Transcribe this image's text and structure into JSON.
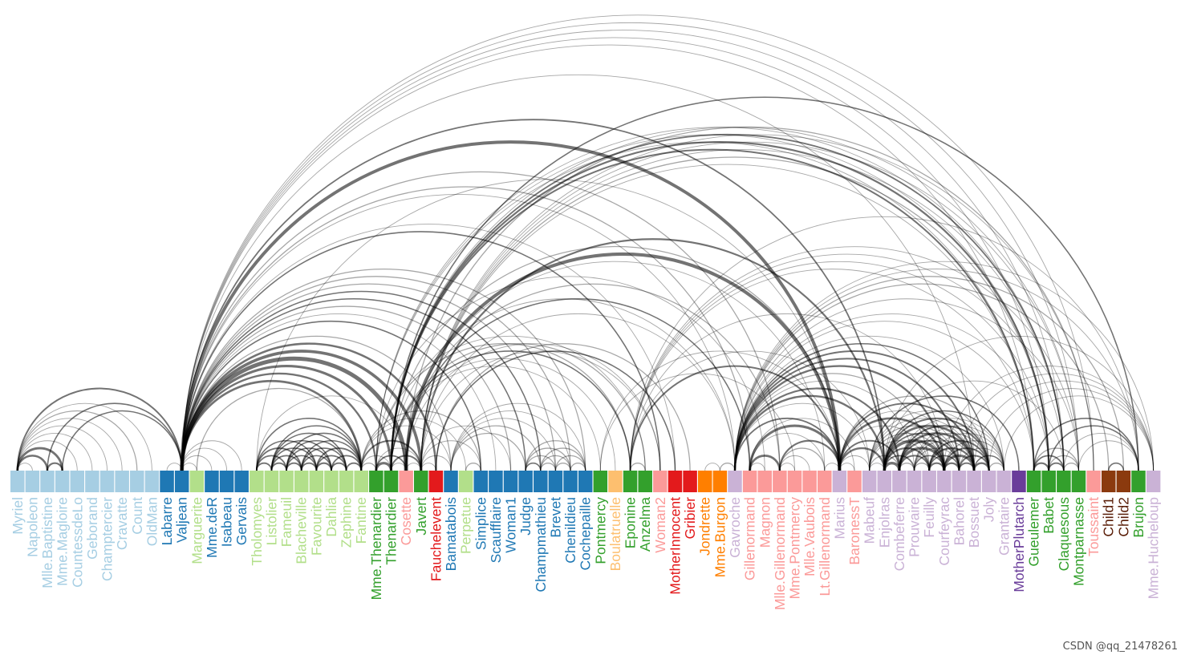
{
  "nodes": [
    {
      "name": "Myriel",
      "group": 1
    },
    {
      "name": "Napoleon",
      "group": 1
    },
    {
      "name": "Mlle.Baptistine",
      "group": 1
    },
    {
      "name": "Mme.Magloire",
      "group": 1
    },
    {
      "name": "CountessdeLo",
      "group": 1
    },
    {
      "name": "Geborand",
      "group": 1
    },
    {
      "name": "Champtercier",
      "group": 1
    },
    {
      "name": "Cravatte",
      "group": 1
    },
    {
      "name": "Count",
      "group": 1
    },
    {
      "name": "OldMan",
      "group": 1
    },
    {
      "name": "Labarre",
      "group": 2
    },
    {
      "name": "Valjean",
      "group": 2
    },
    {
      "name": "Marguerite",
      "group": 3
    },
    {
      "name": "Mme.deR",
      "group": 2
    },
    {
      "name": "Isabeau",
      "group": 2
    },
    {
      "name": "Gervais",
      "group": 2
    },
    {
      "name": "Tholomyes",
      "group": 3
    },
    {
      "name": "Listolier",
      "group": 3
    },
    {
      "name": "Fameuil",
      "group": 3
    },
    {
      "name": "Blacheville",
      "group": 3
    },
    {
      "name": "Favourite",
      "group": 3
    },
    {
      "name": "Dahlia",
      "group": 3
    },
    {
      "name": "Zephine",
      "group": 3
    },
    {
      "name": "Fantine",
      "group": 3
    },
    {
      "name": "Mme.Thenardier",
      "group": 4
    },
    {
      "name": "Thenardier",
      "group": 4
    },
    {
      "name": "Cosette",
      "group": 5
    },
    {
      "name": "Javert",
      "group": 4
    },
    {
      "name": "Fauchelevent",
      "group": 0
    },
    {
      "name": "Bamatabois",
      "group": 2
    },
    {
      "name": "Perpetue",
      "group": 3
    },
    {
      "name": "Simplice",
      "group": 2
    },
    {
      "name": "Scaufflaire",
      "group": 2
    },
    {
      "name": "Woman1",
      "group": 2
    },
    {
      "name": "Judge",
      "group": 2
    },
    {
      "name": "Champmathieu",
      "group": 2
    },
    {
      "name": "Brevet",
      "group": 2
    },
    {
      "name": "Chenildieu",
      "group": 2
    },
    {
      "name": "Cochepaille",
      "group": 2
    },
    {
      "name": "Pontmercy",
      "group": 4
    },
    {
      "name": "Boulatruelle",
      "group": 6
    },
    {
      "name": "Eponine",
      "group": 4
    },
    {
      "name": "Anzelma",
      "group": 4
    },
    {
      "name": "Woman2",
      "group": 5
    },
    {
      "name": "MotherInnocent",
      "group": 0
    },
    {
      "name": "Gribier",
      "group": 0
    },
    {
      "name": "Jondrette",
      "group": 7
    },
    {
      "name": "Mme.Burgon",
      "group": 7
    },
    {
      "name": "Gavroche",
      "group": 8
    },
    {
      "name": "Gillenormand",
      "group": 5
    },
    {
      "name": "Magnon",
      "group": 5
    },
    {
      "name": "Mlle.Gillenormand",
      "group": 5
    },
    {
      "name": "Mme.Pontmercy",
      "group": 5
    },
    {
      "name": "Mlle.Vaubois",
      "group": 5
    },
    {
      "name": "Lt.Gillenormand",
      "group": 5
    },
    {
      "name": "Marius",
      "group": 8
    },
    {
      "name": "BaronessT",
      "group": 5
    },
    {
      "name": "Mabeuf",
      "group": 8
    },
    {
      "name": "Enjolras",
      "group": 8
    },
    {
      "name": "Combeferre",
      "group": 8
    },
    {
      "name": "Prouvaire",
      "group": 8
    },
    {
      "name": "Feuilly",
      "group": 8
    },
    {
      "name": "Courfeyrac",
      "group": 8
    },
    {
      "name": "Bahorel",
      "group": 8
    },
    {
      "name": "Bossuet",
      "group": 8
    },
    {
      "name": "Joly",
      "group": 8
    },
    {
      "name": "Grantaire",
      "group": 8
    },
    {
      "name": "MotherPlutarch",
      "group": 9
    },
    {
      "name": "Gueulemer",
      "group": 4
    },
    {
      "name": "Babet",
      "group": 4
    },
    {
      "name": "Claquesous",
      "group": 4
    },
    {
      "name": "Montparnasse",
      "group": 4
    },
    {
      "name": "Toussaint",
      "group": 5
    },
    {
      "name": "Child1",
      "group": 10
    },
    {
      "name": "Child2",
      "group": 10
    },
    {
      "name": "Brujon",
      "group": 4
    },
    {
      "name": "Mme.Hucheloup",
      "group": 8
    }
  ],
  "group_colors": {
    "fill": [
      "#e31a1c",
      "#a6cee3",
      "#1f78b4",
      "#b2df8a",
      "#33a02c",
      "#fb9a99",
      "#fdbf6f",
      "#ff7f00",
      "#cab2d6",
      "#6a3d9a",
      "#8b3a0e"
    ],
    "label": [
      "#e31a1c",
      "#a6cee3",
      "#1f78b4",
      "#b2df8a",
      "#33a02c",
      "#fb9a99",
      "#fdbf6f",
      "#ff7f00",
      "#cab2d6",
      "#6a3d9a",
      "#5a1e08"
    ]
  },
  "links": [
    [
      "Napoleon",
      "Myriel",
      1
    ],
    [
      "Mlle.Baptistine",
      "Myriel",
      8
    ],
    [
      "Mme.Magloire",
      "Myriel",
      10
    ],
    [
      "Mme.Magloire",
      "Mlle.Baptistine",
      6
    ],
    [
      "CountessdeLo",
      "Myriel",
      1
    ],
    [
      "Geborand",
      "Myriel",
      1
    ],
    [
      "Champtercier",
      "Myriel",
      1
    ],
    [
      "Cravatte",
      "Myriel",
      1
    ],
    [
      "Count",
      "Myriel",
      2
    ],
    [
      "OldMan",
      "Myriel",
      1
    ],
    [
      "Valjean",
      "Labarre",
      1
    ],
    [
      "Valjean",
      "Mme.Magloire",
      3
    ],
    [
      "Valjean",
      "Mlle.Baptistine",
      3
    ],
    [
      "Valjean",
      "Myriel",
      5
    ],
    [
      "Marguerite",
      "Valjean",
      1
    ],
    [
      "Mme.deR",
      "Valjean",
      1
    ],
    [
      "Isabeau",
      "Valjean",
      1
    ],
    [
      "Gervais",
      "Valjean",
      1
    ],
    [
      "Listolier",
      "Tholomyes",
      4
    ],
    [
      "Fameuil",
      "Tholomyes",
      4
    ],
    [
      "Fameuil",
      "Listolier",
      4
    ],
    [
      "Blacheville",
      "Tholomyes",
      4
    ],
    [
      "Blacheville",
      "Listolier",
      4
    ],
    [
      "Blacheville",
      "Fameuil",
      4
    ],
    [
      "Favourite",
      "Tholomyes",
      3
    ],
    [
      "Favourite",
      "Listolier",
      3
    ],
    [
      "Favourite",
      "Fameuil",
      3
    ],
    [
      "Favourite",
      "Blacheville",
      4
    ],
    [
      "Dahlia",
      "Listolier",
      3
    ],
    [
      "Dahlia",
      "Fameuil",
      3
    ],
    [
      "Dahlia",
      "Blacheville",
      3
    ],
    [
      "Dahlia",
      "Favourite",
      5
    ],
    [
      "Zephine",
      "Listolier",
      3
    ],
    [
      "Zephine",
      "Fameuil",
      3
    ],
    [
      "Zephine",
      "Blacheville",
      3
    ],
    [
      "Zephine",
      "Favourite",
      4
    ],
    [
      "Zephine",
      "Dahlia",
      4
    ],
    [
      "Fantine",
      "Listolier",
      3
    ],
    [
      "Fantine",
      "Fameuil",
      3
    ],
    [
      "Fantine",
      "Blacheville",
      3
    ],
    [
      "Fantine",
      "Favourite",
      4
    ],
    [
      "Fantine",
      "Dahlia",
      4
    ],
    [
      "Fantine",
      "Tholomyes",
      3
    ],
    [
      "Fantine",
      "Zephine",
      4
    ],
    [
      "Fantine",
      "Marguerite",
      2
    ],
    [
      "Fantine",
      "Valjean",
      9
    ],
    [
      "Mme.Thenardier",
      "Fantine",
      2
    ],
    [
      "Mme.Thenardier",
      "Valjean",
      7
    ],
    [
      "Thenardier",
      "Mme.Thenardier",
      13
    ],
    [
      "Thenardier",
      "Fantine",
      1
    ],
    [
      "Thenardier",
      "Valjean",
      12
    ],
    [
      "Cosette",
      "Mme.Thenardier",
      4
    ],
    [
      "Cosette",
      "Valjean",
      31
    ],
    [
      "Cosette",
      "Tholomyes",
      1
    ],
    [
      "Cosette",
      "Thenardier",
      1
    ],
    [
      "Javert",
      "Valjean",
      17
    ],
    [
      "Javert",
      "Fantine",
      5
    ],
    [
      "Javert",
      "Thenardier",
      5
    ],
    [
      "Javert",
      "Mme.Thenardier",
      1
    ],
    [
      "Javert",
      "Cosette",
      1
    ],
    [
      "Fauchelevent",
      "Valjean",
      8
    ],
    [
      "Fauchelevent",
      "Javert",
      1
    ],
    [
      "Bamatabois",
      "Fantine",
      1
    ],
    [
      "Bamatabois",
      "Javert",
      1
    ],
    [
      "Bamatabois",
      "Valjean",
      2
    ],
    [
      "Perpetue",
      "Fantine",
      1
    ],
    [
      "Simplice",
      "Perpetue",
      2
    ],
    [
      "Simplice",
      "Valjean",
      3
    ],
    [
      "Simplice",
      "Fantine",
      2
    ],
    [
      "Simplice",
      "Javert",
      1
    ],
    [
      "Scaufflaire",
      "Valjean",
      1
    ],
    [
      "Woman1",
      "Valjean",
      2
    ],
    [
      "Woman1",
      "Javert",
      1
    ],
    [
      "Judge",
      "Valjean",
      3
    ],
    [
      "Judge",
      "Bamatabois",
      2
    ],
    [
      "Champmathieu",
      "Valjean",
      3
    ],
    [
      "Champmathieu",
      "Judge",
      3
    ],
    [
      "Champmathieu",
      "Bamatabois",
      2
    ],
    [
      "Brevet",
      "Judge",
      2
    ],
    [
      "Brevet",
      "Champmathieu",
      2
    ],
    [
      "Brevet",
      "Valjean",
      2
    ],
    [
      "Brevet",
      "Bamatabois",
      1
    ],
    [
      "Chenildieu",
      "Judge",
      2
    ],
    [
      "Chenildieu",
      "Champmathieu",
      2
    ],
    [
      "Chenildieu",
      "Brevet",
      2
    ],
    [
      "Chenildieu",
      "Valjean",
      2
    ],
    [
      "Chenildieu",
      "Bamatabois",
      1
    ],
    [
      "Cochepaille",
      "Judge",
      2
    ],
    [
      "Cochepaille",
      "Champmathieu",
      2
    ],
    [
      "Cochepaille",
      "Brevet",
      2
    ],
    [
      "Cochepaille",
      "Chenildieu",
      2
    ],
    [
      "Cochepaille",
      "Valjean",
      2
    ],
    [
      "Cochepaille",
      "Bamatabois",
      1
    ],
    [
      "Pontmercy",
      "Thenardier",
      1
    ],
    [
      "Boulatruelle",
      "Thenardier",
      1
    ],
    [
      "Eponine",
      "Mme.Thenardier",
      2
    ],
    [
      "Eponine",
      "Thenardier",
      3
    ],
    [
      "Anzelma",
      "Eponine",
      2
    ],
    [
      "Anzelma",
      "Thenardier",
      2
    ],
    [
      "Anzelma",
      "Mme.Thenardier",
      1
    ],
    [
      "Woman2",
      "Valjean",
      3
    ],
    [
      "Woman2",
      "Cosette",
      1
    ],
    [
      "Woman2",
      "Javert",
      1
    ],
    [
      "MotherInnocent",
      "Fauchelevent",
      3
    ],
    [
      "MotherInnocent",
      "Valjean",
      1
    ],
    [
      "Gribier",
      "Fauchelevent",
      2
    ],
    [
      "Mme.Burgon",
      "Jondrette",
      1
    ],
    [
      "Gavroche",
      "Mme.Burgon",
      2
    ],
    [
      "Gavroche",
      "Thenardier",
      1
    ],
    [
      "Gavroche",
      "Javert",
      1
    ],
    [
      "Gavroche",
      "Valjean",
      1
    ],
    [
      "Gillenormand",
      "Cosette",
      3
    ],
    [
      "Gillenormand",
      "Valjean",
      2
    ],
    [
      "Magnon",
      "Gillenormand",
      1
    ],
    [
      "Magnon",
      "Mme.Thenardier",
      1
    ],
    [
      "Mlle.Gillenormand",
      "Gillenormand",
      9
    ],
    [
      "Mlle.Gillenormand",
      "Cosette",
      2
    ],
    [
      "Mlle.Gillenormand",
      "Valjean",
      2
    ],
    [
      "Mme.Pontmercy",
      "Mlle.Gillenormand",
      1
    ],
    [
      "Mme.Pontmercy",
      "Pontmercy",
      1
    ],
    [
      "Mlle.Vaubois",
      "Mlle.Gillenormand",
      1
    ],
    [
      "Lt.Gillenormand",
      "Mlle.Gillenormand",
      2
    ],
    [
      "Lt.Gillenormand",
      "Gillenormand",
      1
    ],
    [
      "Lt.Gillenormand",
      "Cosette",
      1
    ],
    [
      "Marius",
      "Mlle.Gillenormand",
      6
    ],
    [
      "Marius",
      "Gillenormand",
      12
    ],
    [
      "Marius",
      "Pontmercy",
      1
    ],
    [
      "Marius",
      "Lt.Gillenormand",
      1
    ],
    [
      "Marius",
      "Cosette",
      21
    ],
    [
      "Marius",
      "Valjean",
      19
    ],
    [
      "Marius",
      "Tholomyes",
      1
    ],
    [
      "Marius",
      "Thenardier",
      2
    ],
    [
      "Marius",
      "Eponine",
      5
    ],
    [
      "Marius",
      "Gavroche",
      4
    ],
    [
      "BaronessT",
      "Gillenormand",
      1
    ],
    [
      "BaronessT",
      "Marius",
      1
    ],
    [
      "Mabeuf",
      "Marius",
      1
    ],
    [
      "Mabeuf",
      "Eponine",
      1
    ],
    [
      "Mabeuf",
      "Gavroche",
      1
    ],
    [
      "Enjolras",
      "Marius",
      7
    ],
    [
      "Enjolras",
      "Gavroche",
      7
    ],
    [
      "Enjolras",
      "Javert",
      6
    ],
    [
      "Enjolras",
      "Mabeuf",
      1
    ],
    [
      "Enjolras",
      "Valjean",
      4
    ],
    [
      "Combeferre",
      "Enjolras",
      15
    ],
    [
      "Combeferre",
      "Marius",
      5
    ],
    [
      "Combeferre",
      "Gavroche",
      6
    ],
    [
      "Combeferre",
      "Mabeuf",
      2
    ],
    [
      "Prouvaire",
      "Gavroche",
      1
    ],
    [
      "Prouvaire",
      "Enjolras",
      4
    ],
    [
      "Prouvaire",
      "Combeferre",
      2
    ],
    [
      "Feuilly",
      "Gavroche",
      2
    ],
    [
      "Feuilly",
      "Enjolras",
      6
    ],
    [
      "Feuilly",
      "Prouvaire",
      2
    ],
    [
      "Feuilly",
      "Combeferre",
      5
    ],
    [
      "Feuilly",
      "Mabeuf",
      1
    ],
    [
      "Feuilly",
      "Marius",
      1
    ],
    [
      "Courfeyrac",
      "Marius",
      9
    ],
    [
      "Courfeyrac",
      "Enjolras",
      17
    ],
    [
      "Courfeyrac",
      "Combeferre",
      13
    ],
    [
      "Courfeyrac",
      "Gavroche",
      7
    ],
    [
      "Courfeyrac",
      "Mabeuf",
      2
    ],
    [
      "Courfeyrac",
      "Eponine",
      1
    ],
    [
      "Courfeyrac",
      "Feuilly",
      6
    ],
    [
      "Courfeyrac",
      "Prouvaire",
      3
    ],
    [
      "Bahorel",
      "Combeferre",
      5
    ],
    [
      "Bahorel",
      "Gavroche",
      5
    ],
    [
      "Bahorel",
      "Courfeyrac",
      6
    ],
    [
      "Bahorel",
      "Mabeuf",
      2
    ],
    [
      "Bahorel",
      "Enjolras",
      4
    ],
    [
      "Bahorel",
      "Feuilly",
      3
    ],
    [
      "Bahorel",
      "Prouvaire",
      2
    ],
    [
      "Bahorel",
      "Marius",
      1
    ],
    [
      "Bossuet",
      "Marius",
      5
    ],
    [
      "Bossuet",
      "Courfeyrac",
      12
    ],
    [
      "Bossuet",
      "Gavroche",
      5
    ],
    [
      "Bossuet",
      "Bahorel",
      4
    ],
    [
      "Bossuet",
      "Enjolras",
      10
    ],
    [
      "Bossuet",
      "Feuilly",
      6
    ],
    [
      "Bossuet",
      "Prouvaire",
      2
    ],
    [
      "Bossuet",
      "Combeferre",
      9
    ],
    [
      "Bossuet",
      "Mabeuf",
      1
    ],
    [
      "Bossuet",
      "Valjean",
      1
    ],
    [
      "Joly",
      "Bahorel",
      5
    ],
    [
      "Joly",
      "Bossuet",
      7
    ],
    [
      "Joly",
      "Gavroche",
      3
    ],
    [
      "Joly",
      "Courfeyrac",
      5
    ],
    [
      "Joly",
      "Enjolras",
      5
    ],
    [
      "Joly",
      "Feuilly",
      5
    ],
    [
      "Joly",
      "Prouvaire",
      2
    ],
    [
      "Joly",
      "Combeferre",
      5
    ],
    [
      "Joly",
      "Mabeuf",
      1
    ],
    [
      "Joly",
      "Marius",
      2
    ],
    [
      "Grantaire",
      "Bossuet",
      3
    ],
    [
      "Grantaire",
      "Enjolras",
      3
    ],
    [
      "Grantaire",
      "Combeferre",
      1
    ],
    [
      "Grantaire",
      "Courfeyrac",
      2
    ],
    [
      "Grantaire",
      "Joly",
      2
    ],
    [
      "Grantaire",
      "Gavroche",
      1
    ],
    [
      "Grantaire",
      "Bahorel",
      1
    ],
    [
      "Grantaire",
      "Feuilly",
      1
    ],
    [
      "Grantaire",
      "Prouvaire",
      1
    ],
    [
      "MotherPlutarch",
      "Mabeuf",
      3
    ],
    [
      "Gueulemer",
      "Thenardier",
      5
    ],
    [
      "Gueulemer",
      "Valjean",
      1
    ],
    [
      "Gueulemer",
      "Mme.Thenardier",
      1
    ],
    [
      "Gueulemer",
      "Javert",
      1
    ],
    [
      "Gueulemer",
      "Gavroche",
      1
    ],
    [
      "Gueulemer",
      "Eponine",
      1
    ],
    [
      "Babet",
      "Thenardier",
      6
    ],
    [
      "Babet",
      "Gueulemer",
      6
    ],
    [
      "Babet",
      "Valjean",
      1
    ],
    [
      "Babet",
      "Mme.Thenardier",
      1
    ],
    [
      "Babet",
      "Javert",
      2
    ],
    [
      "Babet",
      "Gavroche",
      1
    ],
    [
      "Babet",
      "Eponine",
      1
    ],
    [
      "Claquesous",
      "Thenardier",
      4
    ],
    [
      "Claquesous",
      "Babet",
      4
    ],
    [
      "Claquesous",
      "Gueulemer",
      4
    ],
    [
      "Claquesous",
      "Valjean",
      1
    ],
    [
      "Claquesous",
      "Mme.Thenardier",
      1
    ],
    [
      "Claquesous",
      "Javert",
      1
    ],
    [
      "Claquesous",
      "Eponine",
      1
    ],
    [
      "Claquesous",
      "Enjolras",
      1
    ],
    [
      "Montparnasse",
      "Javert",
      1
    ],
    [
      "Montparnasse",
      "Babet",
      2
    ],
    [
      "Montparnasse",
      "Gueulemer",
      2
    ],
    [
      "Montparnasse",
      "Claquesous",
      2
    ],
    [
      "Montparnasse",
      "Valjean",
      1
    ],
    [
      "Montparnasse",
      "Gavroche",
      1
    ],
    [
      "Montparnasse",
      "Eponine",
      1
    ],
    [
      "Montparnasse",
      "Thenardier",
      1
    ],
    [
      "Toussaint",
      "Cosette",
      2
    ],
    [
      "Toussaint",
      "Javert",
      1
    ],
    [
      "Toussaint",
      "Valjean",
      1
    ],
    [
      "Child1",
      "Gavroche",
      2
    ],
    [
      "Child2",
      "Gavroche",
      2
    ],
    [
      "Child2",
      "Child1",
      3
    ],
    [
      "Brujon",
      "Babet",
      3
    ],
    [
      "Brujon",
      "Gueulemer",
      3
    ],
    [
      "Brujon",
      "Thenardier",
      3
    ],
    [
      "Brujon",
      "Gavroche",
      1
    ],
    [
      "Brujon",
      "Eponine",
      1
    ],
    [
      "Brujon",
      "Claquesous",
      1
    ],
    [
      "Brujon",
      "Montparnasse",
      1
    ],
    [
      "Mme.Hucheloup",
      "Bossuet",
      1
    ],
    [
      "Mme.Hucheloup",
      "Joly",
      1
    ],
    [
      "Mme.Hucheloup",
      "Grantaire",
      1
    ],
    [
      "Mme.Hucheloup",
      "Bahorel",
      1
    ],
    [
      "Mme.Hucheloup",
      "Courfeyrac",
      1
    ],
    [
      "Mme.Hucheloup",
      "Gavroche",
      1
    ],
    [
      "Mme.Hucheloup",
      "Enjolras",
      1
    ]
  ],
  "watermark": "CSDN @qq_21478261"
}
